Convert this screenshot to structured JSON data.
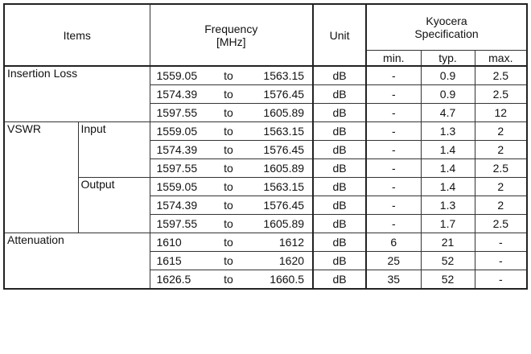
{
  "header": {
    "items": "Items",
    "frequency": "Frequency",
    "frequency_unit": "[MHz]",
    "unit": "Unit",
    "spec": "Kyocera Specification",
    "min": "min.",
    "typ": "typ.",
    "max": "max."
  },
  "groups": [
    {
      "label": "Insertion Loss",
      "sub": "",
      "rows": [
        {
          "from": "1559.05",
          "to": "to",
          "end": "1563.15",
          "unit": "dB",
          "min": "-",
          "typ": "0.9",
          "max": "2.5"
        },
        {
          "from": "1574.39",
          "to": "to",
          "end": "1576.45",
          "unit": "dB",
          "min": "-",
          "typ": "0.9",
          "max": "2.5"
        },
        {
          "from": "1597.55",
          "to": "to",
          "end": "1605.89",
          "unit": "dB",
          "min": "-",
          "typ": "4.7",
          "max": "12"
        }
      ]
    },
    {
      "label": "VSWR",
      "sub": "Input",
      "rows": [
        {
          "from": "1559.05",
          "to": "to",
          "end": "1563.15",
          "unit": "dB",
          "min": "-",
          "typ": "1.3",
          "max": "2"
        },
        {
          "from": "1574.39",
          "to": "to",
          "end": "1576.45",
          "unit": "dB",
          "min": "-",
          "typ": "1.4",
          "max": "2"
        },
        {
          "from": "1597.55",
          "to": "to",
          "end": "1605.89",
          "unit": "dB",
          "min": "-",
          "typ": "1.4",
          "max": "2.5"
        }
      ]
    },
    {
      "label": "",
      "sub": "Output",
      "rows": [
        {
          "from": "1559.05",
          "to": "to",
          "end": "1563.15",
          "unit": "dB",
          "min": "-",
          "typ": "1.4",
          "max": "2"
        },
        {
          "from": "1574.39",
          "to": "to",
          "end": "1576.45",
          "unit": "dB",
          "min": "-",
          "typ": "1.3",
          "max": "2"
        },
        {
          "from": "1597.55",
          "to": "to",
          "end": "1605.89",
          "unit": "dB",
          "min": "-",
          "typ": "1.7",
          "max": "2.5"
        }
      ]
    },
    {
      "label": "Attenuation",
      "sub": "",
      "rows": [
        {
          "from": "1610",
          "to": "to",
          "end": "1612",
          "unit": "dB",
          "min": "6",
          "typ": "21",
          "max": "-"
        },
        {
          "from": "1615",
          "to": "to",
          "end": "1620",
          "unit": "dB",
          "min": "25",
          "typ": "52",
          "max": "-"
        },
        {
          "from": "1626.5",
          "to": "to",
          "end": "1660.5",
          "unit": "dB",
          "min": "35",
          "typ": "52",
          "max": "-"
        }
      ]
    }
  ]
}
